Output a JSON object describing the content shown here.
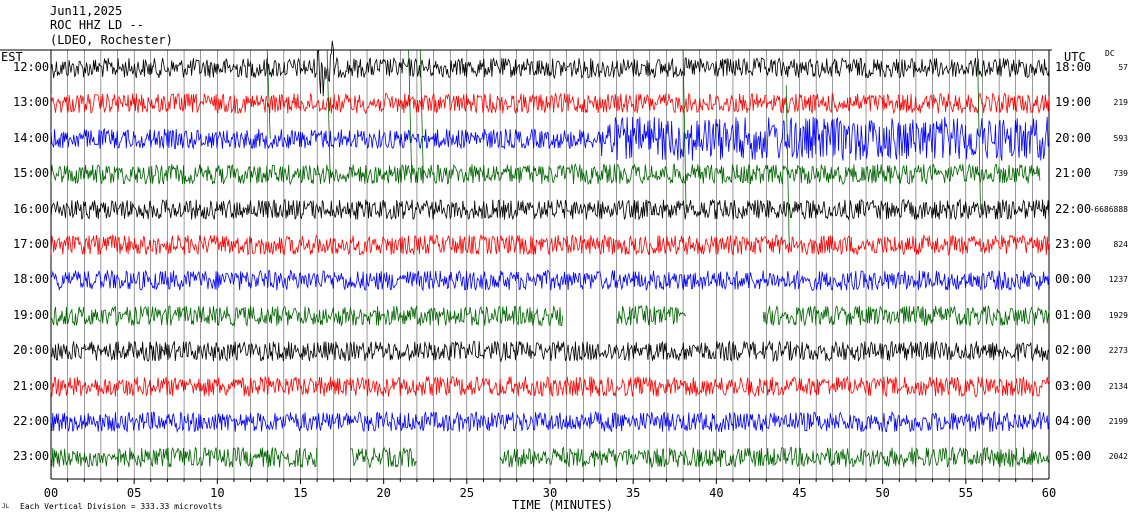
{
  "header": {
    "date": "Jun11,2025",
    "station": "ROC HHZ LD --",
    "location": "(LDEO, Rochester)"
  },
  "left_axis_label": "EST",
  "right_axis_label": "UTC",
  "dc_label": "DC",
  "scale_note": "Each Vertical Division =  333.33 microvolts",
  "corner_mark": "JL",
  "chart_data": {
    "type": "line",
    "title": "",
    "xlabel": "TIME (MINUTES)",
    "ylabel": "",
    "xlim": [
      0,
      60
    ],
    "x_ticks": [
      "00",
      "05",
      "10",
      "15",
      "20",
      "25",
      "30",
      "35",
      "40",
      "45",
      "50",
      "55",
      "60"
    ],
    "trace_colors": [
      "#000000",
      "#ff0000",
      "#0000ff",
      "#006400"
    ],
    "rows": [
      {
        "est": "12:00",
        "utc": "18:00",
        "dc": "57",
        "color": "#000000"
      },
      {
        "est": "13:00",
        "utc": "19:00",
        "dc": "219",
        "color": "#ff0000"
      },
      {
        "est": "14:00",
        "utc": "20:00",
        "dc": "593",
        "color": "#0000ff"
      },
      {
        "est": "15:00",
        "utc": "21:00",
        "dc": "739",
        "color": "#006400"
      },
      {
        "est": "16:00",
        "utc": "22:00",
        "dc": "-6686888",
        "color": "#000000"
      },
      {
        "est": "17:00",
        "utc": "23:00",
        "dc": "824",
        "color": "#ff0000"
      },
      {
        "est": "18:00",
        "utc": "00:00",
        "dc": "1237",
        "color": "#0000ff"
      },
      {
        "est": "19:00",
        "utc": "01:00",
        "dc": "1929",
        "color": "#006400"
      },
      {
        "est": "20:00",
        "utc": "02:00",
        "dc": "2273",
        "color": "#000000"
      },
      {
        "est": "21:00",
        "utc": "03:00",
        "dc": "2134",
        "color": "#ff0000"
      },
      {
        "est": "22:00",
        "utc": "04:00",
        "dc": "2199",
        "color": "#0000ff"
      },
      {
        "est": "23:00",
        "utc": "05:00",
        "dc": "2042",
        "color": "#006400"
      }
    ],
    "grid": "vertical minute lines",
    "legend": "none"
  }
}
